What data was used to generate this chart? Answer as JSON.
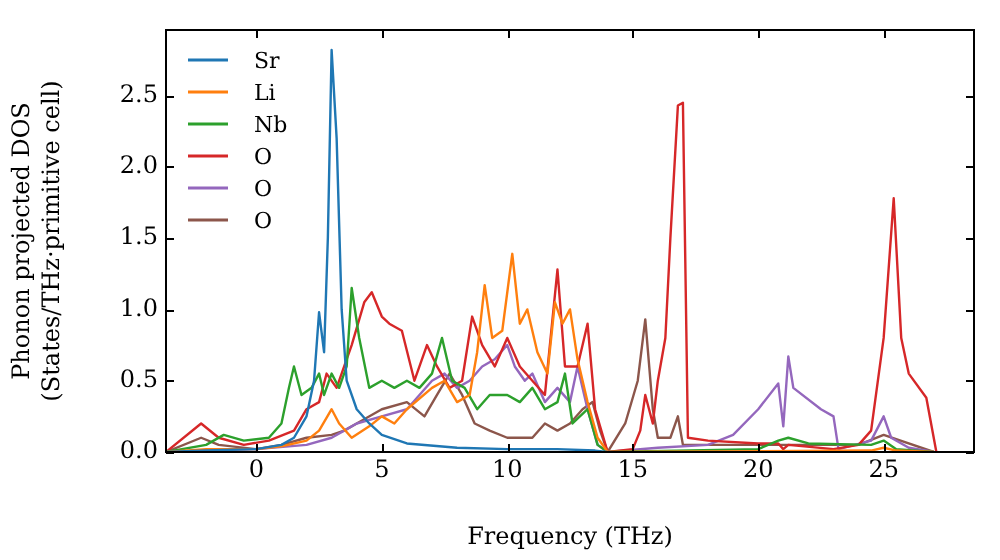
{
  "chart_data": {
    "type": "line",
    "xlabel": "Frequency (THz)",
    "ylabel": "Phonon projected DOS\n(States/THz·primitive cell)",
    "xlim": [
      -3.6,
      28.6
    ],
    "ylim": [
      0,
      2.96
    ],
    "xticks": [
      0,
      5,
      10,
      15,
      20,
      25
    ],
    "yticks": [
      {
        "value": 0,
        "label": "0.0"
      },
      0.5,
      {
        "value": 1,
        "label": "1.0"
      },
      1.5,
      {
        "value": 2,
        "label": "2.0"
      },
      2.5
    ],
    "grid": false,
    "legend": "top left",
    "marker": "none",
    "line_style": "solid",
    "series": [
      {
        "name": "Sr",
        "color": "#1f77b4",
        "x": [
          -3.6,
          -2,
          0,
          1,
          1.5,
          2,
          2.3,
          2.5,
          2.7,
          2.85,
          3,
          3.2,
          3.4,
          3.6,
          4,
          4.5,
          5,
          6,
          8,
          10,
          12,
          13.5,
          14
        ],
        "values": [
          0,
          0.01,
          0.02,
          0.05,
          0.1,
          0.25,
          0.5,
          0.98,
          0.7,
          1.5,
          2.82,
          2.2,
          1,
          0.5,
          0.3,
          0.2,
          0.12,
          0.06,
          0.03,
          0.02,
          0.02,
          0.01,
          0
        ]
      },
      {
        "name": "Li",
        "color": "#ff7f0e",
        "x": [
          -3.6,
          -2,
          0,
          1,
          2,
          2.5,
          3,
          3.3,
          3.8,
          4.5,
          5,
          5.5,
          6,
          7,
          7.5,
          8,
          8.5,
          8.8,
          9.1,
          9.4,
          9.8,
          10.2,
          10.5,
          10.8,
          11.2,
          11.6,
          11.9,
          12.2,
          12.5,
          12.8,
          13.2,
          13.6,
          14,
          24.5,
          25,
          25.5,
          27
        ],
        "values": [
          0,
          0.02,
          0.02,
          0.04,
          0.08,
          0.15,
          0.3,
          0.2,
          0.1,
          0.18,
          0.25,
          0.2,
          0.3,
          0.45,
          0.5,
          0.35,
          0.4,
          0.7,
          1.17,
          0.8,
          0.85,
          1.39,
          0.9,
          1,
          0.7,
          0.55,
          1.05,
          0.9,
          1,
          0.65,
          0.35,
          0.1,
          0,
          0.01,
          0.03,
          0.01,
          0
        ]
      },
      {
        "name": "Nb",
        "color": "#2ca02c",
        "x": [
          -3.6,
          -2,
          -1.3,
          -0.5,
          0.5,
          1,
          1.3,
          1.5,
          1.8,
          2.2,
          2.5,
          2.7,
          3,
          3.3,
          3.6,
          3.8,
          4.1,
          4.5,
          5,
          5.5,
          6,
          6.5,
          7,
          7.4,
          7.8,
          8.3,
          8.8,
          9.3,
          10,
          10.5,
          11,
          11.5,
          12,
          12.3,
          12.6,
          13.2,
          13.6,
          14,
          20,
          20.8,
          21.2,
          22,
          24.5,
          25,
          25.5,
          27
        ],
        "values": [
          0,
          0.05,
          0.12,
          0.08,
          0.1,
          0.2,
          0.45,
          0.6,
          0.4,
          0.45,
          0.55,
          0.4,
          0.55,
          0.45,
          0.6,
          1.15,
          0.8,
          0.45,
          0.5,
          0.45,
          0.5,
          0.45,
          0.55,
          0.8,
          0.5,
          0.45,
          0.3,
          0.4,
          0.4,
          0.35,
          0.45,
          0.3,
          0.35,
          0.55,
          0.2,
          0.3,
          0.05,
          0,
          0.02,
          0.08,
          0.1,
          0.06,
          0.05,
          0.08,
          0.02,
          0
        ]
      },
      {
        "name": "O",
        "color": "#d62728",
        "x": [
          -3.6,
          -2.2,
          -1.5,
          -0.5,
          0.5,
          1.5,
          2,
          2.5,
          2.8,
          3.2,
          3.5,
          3.8,
          4.3,
          4.6,
          5,
          5.3,
          5.8,
          6.3,
          6.8,
          7.2,
          7.7,
          8.2,
          8.6,
          9,
          9.5,
          10,
          10.5,
          11,
          11.5,
          12,
          12.3,
          12.8,
          13.2,
          13.5,
          14,
          15,
          15.3,
          15.5,
          15.8,
          16,
          16.3,
          16.5,
          16.8,
          17,
          17.2,
          18,
          20,
          20.8,
          21,
          21.2,
          23,
          24,
          24.5,
          25,
          25.4,
          25.7,
          26,
          26.7,
          27.1
        ],
        "values": [
          0,
          0.2,
          0.1,
          0.05,
          0.08,
          0.15,
          0.3,
          0.35,
          0.55,
          0.45,
          0.6,
          0.75,
          1.05,
          1.12,
          0.95,
          0.9,
          0.85,
          0.5,
          0.75,
          0.6,
          0.45,
          0.5,
          0.95,
          0.75,
          0.6,
          0.8,
          0.6,
          0.5,
          0.4,
          1.28,
          0.6,
          0.6,
          0.9,
          0.3,
          0,
          0.02,
          0.15,
          0.4,
          0.2,
          0.5,
          0.8,
          1.5,
          2.43,
          2.45,
          0.1,
          0.08,
          0.06,
          0.06,
          0.02,
          0.05,
          0.02,
          0.05,
          0.15,
          0.8,
          1.78,
          0.8,
          0.55,
          0.38,
          0
        ]
      },
      {
        "name": "O",
        "color": "#9467bd",
        "x": [
          -3.6,
          0,
          2,
          3,
          3.5,
          4,
          5,
          6,
          6.5,
          7,
          7.5,
          8,
          8.5,
          9,
          9.5,
          10,
          10.3,
          10.7,
          11,
          11.5,
          12,
          12.5,
          12.8,
          13.2,
          13.6,
          14,
          16,
          18,
          19,
          20,
          20.8,
          21,
          21.2,
          21.4,
          22.5,
          23,
          23.2,
          24.5,
          25,
          25.3,
          26,
          27
        ],
        "values": [
          0,
          0.02,
          0.05,
          0.1,
          0.15,
          0.2,
          0.25,
          0.3,
          0.4,
          0.5,
          0.55,
          0.45,
          0.5,
          0.6,
          0.65,
          0.75,
          0.6,
          0.5,
          0.55,
          0.35,
          0.45,
          0.35,
          0.6,
          0.3,
          0.05,
          0,
          0.03,
          0.05,
          0.12,
          0.3,
          0.48,
          0.18,
          0.67,
          0.45,
          0.3,
          0.25,
          0.02,
          0.08,
          0.25,
          0.1,
          0.03,
          0
        ]
      },
      {
        "name": "O",
        "color": "#8c564b",
        "x": [
          -3.6,
          -2.2,
          -1.5,
          0,
          1,
          2,
          3,
          3.5,
          4,
          5,
          6,
          6.7,
          7.2,
          7.7,
          8.2,
          8.7,
          9.3,
          10,
          11,
          11.5,
          12,
          12.5,
          13,
          13.4,
          13.7,
          14,
          14.7,
          15.2,
          15.5,
          15.8,
          16,
          16.5,
          16.8,
          17,
          24,
          25,
          27
        ],
        "values": [
          0,
          0.1,
          0.05,
          0.02,
          0.05,
          0.1,
          0.12,
          0.15,
          0.2,
          0.3,
          0.35,
          0.25,
          0.4,
          0.55,
          0.4,
          0.2,
          0.15,
          0.1,
          0.1,
          0.2,
          0.15,
          0.2,
          0.3,
          0.35,
          0.15,
          0,
          0.2,
          0.5,
          0.93,
          0.3,
          0.1,
          0.1,
          0.25,
          0.05,
          0.05,
          0.12,
          0
        ]
      }
    ]
  }
}
